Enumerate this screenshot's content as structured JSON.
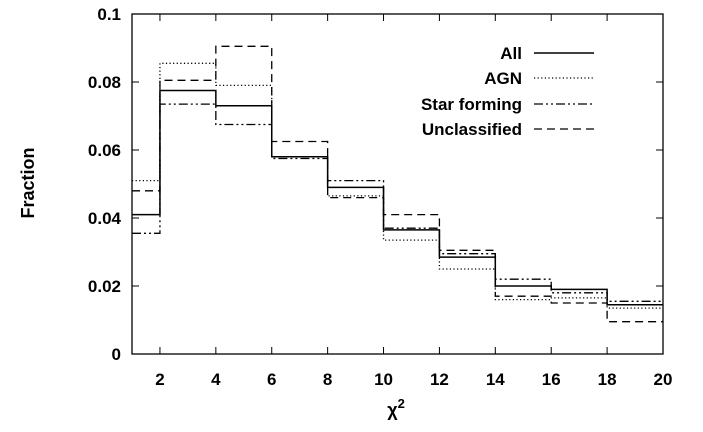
{
  "chart_data": {
    "type": "line",
    "subtype": "step-histogram",
    "title": "",
    "xlabel": "χ",
    "xlabel_superscript": "2",
    "ylabel": "Fraction",
    "xlim": [
      1,
      20
    ],
    "ylim": [
      0,
      0.1
    ],
    "xticks": [
      2,
      4,
      6,
      8,
      10,
      12,
      14,
      16,
      18,
      20
    ],
    "yticks": [
      0,
      0.02,
      0.04,
      0.06,
      0.08,
      0.1
    ],
    "ytick_labels": [
      "0",
      "0.02",
      "0.04",
      "0.06",
      "0.08",
      "0.1"
    ],
    "bin_edges": [
      1,
      2,
      4,
      6,
      8,
      10,
      12,
      14,
      16,
      18,
      20
    ],
    "legend_position": "top-right",
    "grid": false,
    "series": [
      {
        "name": "All",
        "line_style": "solid",
        "color": "#000000",
        "values": [
          0.041,
          0.0775,
          0.073,
          0.058,
          0.049,
          0.0365,
          0.0285,
          0.02,
          0.019,
          0.0145
        ]
      },
      {
        "name": "AGN",
        "line_style": "dotted",
        "color": "#000000",
        "values": [
          0.051,
          0.0855,
          0.079,
          0.058,
          0.0465,
          0.0335,
          0.025,
          0.016,
          0.0165,
          0.0135
        ]
      },
      {
        "name": "Star forming",
        "line_style": "dash-dot-dot",
        "color": "#000000",
        "values": [
          0.0355,
          0.0735,
          0.0675,
          0.0575,
          0.051,
          0.037,
          0.0295,
          0.022,
          0.018,
          0.0155
        ]
      },
      {
        "name": "Unclassified",
        "line_style": "dashed",
        "color": "#000000",
        "values": [
          0.048,
          0.0805,
          0.0905,
          0.0625,
          0.046,
          0.041,
          0.0305,
          0.017,
          0.015,
          0.0095
        ]
      }
    ]
  }
}
